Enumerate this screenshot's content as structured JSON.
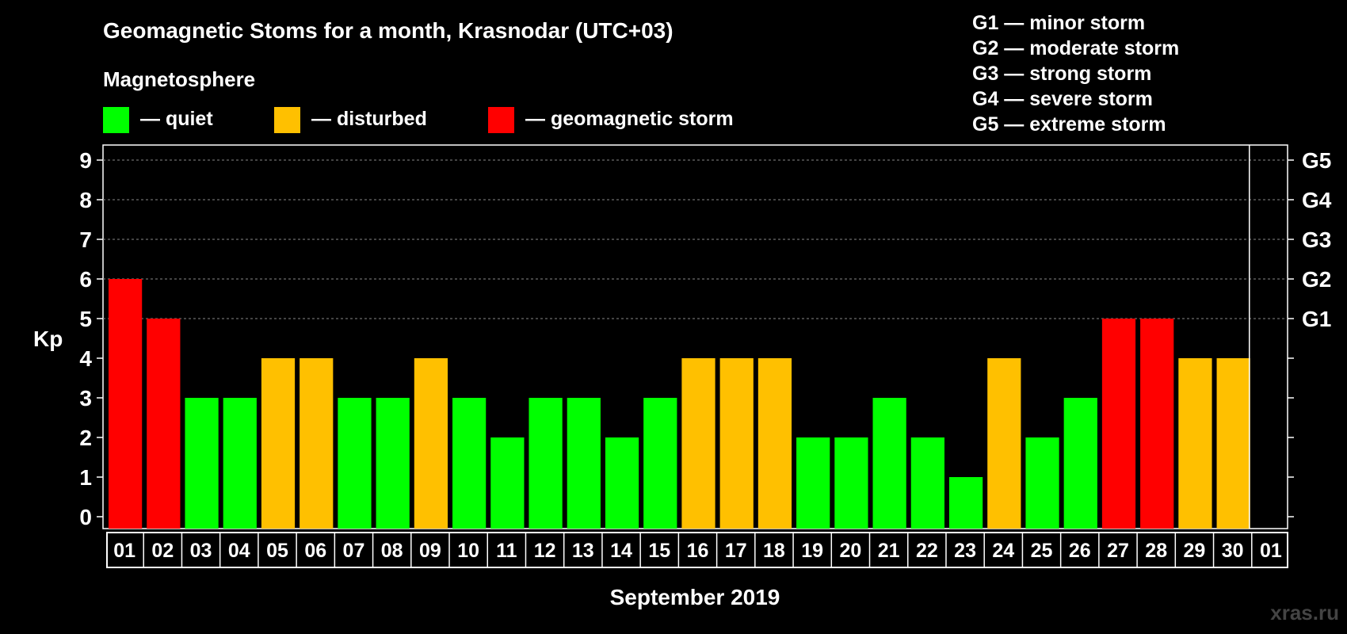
{
  "chart_data": {
    "type": "bar",
    "title": "Geomagnetic Stoms for a month, Krasnodar (UTC+03)",
    "legend_title": "Magnetosphere",
    "legend": [
      {
        "label": "— quiet",
        "color": "#00ff00"
      },
      {
        "label": "— disturbed",
        "color": "#ffc000"
      },
      {
        "label": "— geomagnetic storm",
        "color": "#ff0000"
      }
    ],
    "storm_scale": [
      "G1 — minor storm",
      "G2 — moderate storm",
      "G3 — strong storm",
      "G4 — severe storm",
      "G5 — extreme storm"
    ],
    "ylabel": "Kp",
    "xlabel": "September 2019",
    "ylim": [
      0,
      9
    ],
    "yticks": [
      "0",
      "1",
      "2",
      "3",
      "4",
      "5",
      "6",
      "7",
      "8",
      "9"
    ],
    "right_labels": [
      {
        "kp": 5,
        "label": "G1"
      },
      {
        "kp": 6,
        "label": "G2"
      },
      {
        "kp": 7,
        "label": "G3"
      },
      {
        "kp": 8,
        "label": "G4"
      },
      {
        "kp": 9,
        "label": "G5"
      }
    ],
    "grid": "dashed horizontal lines at Kp 5 to 9",
    "categories": [
      "01",
      "02",
      "03",
      "04",
      "05",
      "06",
      "07",
      "08",
      "09",
      "10",
      "11",
      "12",
      "13",
      "14",
      "15",
      "16",
      "17",
      "18",
      "19",
      "20",
      "21",
      "22",
      "23",
      "24",
      "25",
      "26",
      "27",
      "28",
      "29",
      "30",
      "01"
    ],
    "values": [
      6,
      5,
      3,
      3,
      4,
      4,
      3,
      3,
      4,
      3,
      2,
      3,
      3,
      2,
      3,
      4,
      4,
      4,
      2,
      2,
      3,
      2,
      1,
      4,
      2,
      3,
      5,
      5,
      4,
      4,
      null
    ],
    "status": [
      "storm",
      "storm",
      "quiet",
      "quiet",
      "disturbed",
      "disturbed",
      "quiet",
      "quiet",
      "disturbed",
      "quiet",
      "quiet",
      "quiet",
      "quiet",
      "quiet",
      "quiet",
      "disturbed",
      "disturbed",
      "disturbed",
      "quiet",
      "quiet",
      "quiet",
      "quiet",
      "quiet",
      "disturbed",
      "quiet",
      "quiet",
      "storm",
      "storm",
      "disturbed",
      "disturbed",
      null
    ],
    "status_colors": {
      "quiet": "#00ff00",
      "disturbed": "#ffc000",
      "storm": "#ff0000"
    }
  },
  "watermark": "xras.ru"
}
